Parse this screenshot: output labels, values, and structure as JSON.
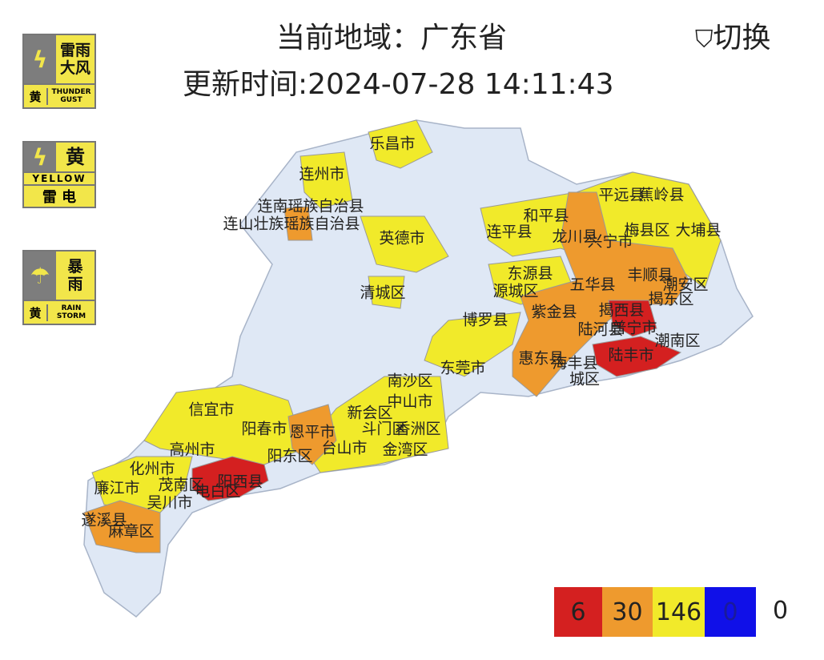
{
  "header": {
    "title": "当前地域：广东省",
    "update_time": "更新时间:2024-07-28 14:11:43",
    "switch": "切换"
  },
  "warnings": [
    {
      "name_lines": [
        "雷雨",
        "大风"
      ],
      "level": "黄",
      "english": "THUNDER GUST"
    },
    {
      "level": "黄",
      "english": "YELLOW",
      "name": "雷 电"
    },
    {
      "name_lines": [
        "暴",
        "雨"
      ],
      "level": "黄",
      "english": "RAIN STORM"
    }
  ],
  "map": {
    "labels": [
      "乐昌市",
      "连州市",
      "连南瑶族自治县",
      "连山壮族瑶族自治县",
      "英德市",
      "清城区",
      "平远县",
      "蕉岭县",
      "和平县",
      "龙川县",
      "连平县",
      "兴宁市",
      "梅县区",
      "大埔县",
      "东源县",
      "源城区",
      "五华县",
      "丰顺县",
      "潮安区",
      "揭东区",
      "紫金县",
      "揭西县",
      "博罗县",
      "陆河县",
      "普宁市",
      "潮南区",
      "惠东县",
      "海丰县",
      "陆丰市",
      "城区",
      "东莞市",
      "南沙区",
      "中山市",
      "新会区",
      "斗门区",
      "香洲区",
      "金湾区",
      "台山市",
      "恩平市",
      "信宜市",
      "阳春市",
      "阳东区",
      "高州市",
      "化州市",
      "茂南区",
      "电白区",
      "阳西县",
      "廉江市",
      "吴川市",
      "遂溪县",
      "麻章区"
    ]
  },
  "legend": {
    "counts": [
      6,
      30,
      146,
      0
    ],
    "other": 0
  }
}
